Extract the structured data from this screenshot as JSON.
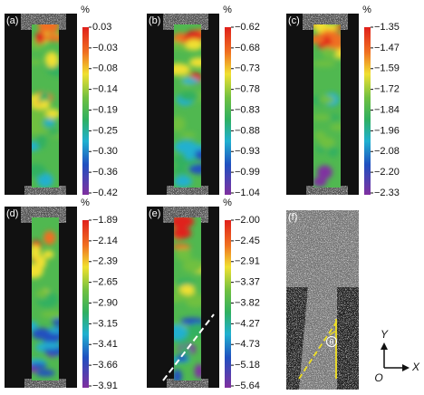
{
  "panels": [
    {
      "label": "(a)",
      "unit": "%",
      "ticks": [
        "0.03",
        "−0.03",
        "−0.08",
        "−0.14",
        "−0.19",
        "−0.25",
        "−0.30",
        "−0.36",
        "−0.42"
      ]
    },
    {
      "label": "(b)",
      "unit": "%",
      "ticks": [
        "−0.62",
        "−0.68",
        "−0.73",
        "−0.78",
        "−0.83",
        "−0.88",
        "−0.93",
        "−0.99",
        "−1.04"
      ]
    },
    {
      "label": "(c)",
      "unit": "%",
      "ticks": [
        "−1.35",
        "−1.47",
        "−1.59",
        "−1.72",
        "−1.84",
        "−1.96",
        "−2.08",
        "−2.20",
        "−2.33"
      ]
    },
    {
      "label": "(d)",
      "unit": "%",
      "ticks": [
        "−1.89",
        "−2.14",
        "−2.39",
        "−2.65",
        "−2.90",
        "−3.15",
        "−3.41",
        "−3.66",
        "−3.91"
      ]
    },
    {
      "label": "(e)",
      "unit": "%",
      "ticks": [
        "−2.00",
        "−2.45",
        "−2.91",
        "−3.37",
        "−3.82",
        "−4.27",
        "−4.73",
        "−5.18",
        "−5.64"
      ]
    }
  ],
  "photo": {
    "label": "(f)",
    "angle": "θ"
  },
  "axes": {
    "y": "Y",
    "x": "X",
    "origin": "O"
  }
}
